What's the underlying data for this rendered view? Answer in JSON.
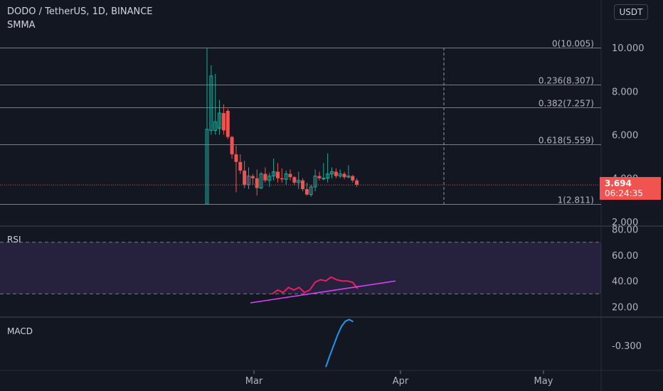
{
  "header": {
    "title": "DODO / TetherUS, 1D, BINANCE",
    "indicator": "SMMA",
    "currency": "USDT"
  },
  "price_badge": {
    "price": "3.694",
    "countdown": "06:24:35"
  },
  "panels": {
    "rsi_label": "RSI",
    "macd_label": "MACD"
  },
  "colors": {
    "background": "#131722",
    "up": "#26a69a",
    "down": "#ef5350",
    "rsi": "#e91e63",
    "trendline": "#e040fb",
    "macd": "#2196f3",
    "rsi_band": "#7e57c2"
  },
  "chart_data": {
    "type": "candlestick",
    "price_axis": {
      "ticks": [
        "10.000",
        "8.000",
        "6.000",
        "4.000",
        "2.000"
      ],
      "range": [
        1.8,
        10.4
      ]
    },
    "x_axis": {
      "ticks": [
        "Mar",
        "Apr",
        "May"
      ]
    },
    "fibonacci": [
      {
        "label": "0(10.005)",
        "value": 10.005
      },
      {
        "label": "0.236(8.307)",
        "value": 8.307
      },
      {
        "label": "0.382(7.257)",
        "value": 7.257
      },
      {
        "label": "0.618(5.559)",
        "value": 5.559
      },
      {
        "label": "1(2.811)",
        "value": 2.811
      }
    ],
    "candles": [
      {
        "o": 2.81,
        "h": 10.0,
        "l": 2.81,
        "c": 6.25
      },
      {
        "o": 6.2,
        "h": 9.2,
        "l": 6.0,
        "c": 8.7
      },
      {
        "o": 6.2,
        "h": 8.8,
        "l": 6.0,
        "c": 6.6
      },
      {
        "o": 6.3,
        "h": 7.6,
        "l": 6.0,
        "c": 7.0
      },
      {
        "o": 7.0,
        "h": 7.4,
        "l": 6.0,
        "c": 6.2
      },
      {
        "o": 7.1,
        "h": 7.2,
        "l": 5.8,
        "c": 5.9
      },
      {
        "o": 5.9,
        "h": 5.95,
        "l": 4.9,
        "c": 5.1
      },
      {
        "o": 5.1,
        "h": 5.5,
        "l": 3.35,
        "c": 4.75
      },
      {
        "o": 4.75,
        "h": 5.1,
        "l": 4.2,
        "c": 4.35
      },
      {
        "o": 4.35,
        "h": 4.8,
        "l": 3.55,
        "c": 3.7
      },
      {
        "o": 3.7,
        "h": 4.5,
        "l": 3.5,
        "c": 4.1
      },
      {
        "o": 4.1,
        "h": 4.2,
        "l": 3.7,
        "c": 4.0
      },
      {
        "o": 4.0,
        "h": 4.4,
        "l": 3.2,
        "c": 3.55
      },
      {
        "o": 3.55,
        "h": 4.3,
        "l": 3.5,
        "c": 4.2
      },
      {
        "o": 4.2,
        "h": 4.5,
        "l": 3.8,
        "c": 3.9
      },
      {
        "o": 3.9,
        "h": 4.25,
        "l": 3.6,
        "c": 4.1
      },
      {
        "o": 4.1,
        "h": 4.9,
        "l": 3.9,
        "c": 4.3
      },
      {
        "o": 4.3,
        "h": 4.7,
        "l": 3.8,
        "c": 4.0
      },
      {
        "o": 4.0,
        "h": 4.45,
        "l": 3.8,
        "c": 3.95
      },
      {
        "o": 3.95,
        "h": 4.35,
        "l": 3.7,
        "c": 4.2
      },
      {
        "o": 4.2,
        "h": 4.4,
        "l": 3.9,
        "c": 4.05
      },
      {
        "o": 4.05,
        "h": 4.1,
        "l": 3.7,
        "c": 3.8
      },
      {
        "o": 3.8,
        "h": 4.3,
        "l": 3.5,
        "c": 3.9
      },
      {
        "o": 3.9,
        "h": 4.0,
        "l": 3.4,
        "c": 3.5
      },
      {
        "o": 3.5,
        "h": 3.8,
        "l": 3.2,
        "c": 3.25
      },
      {
        "o": 3.25,
        "h": 3.7,
        "l": 3.15,
        "c": 3.6
      },
      {
        "o": 3.6,
        "h": 4.4,
        "l": 3.4,
        "c": 4.1
      },
      {
        "o": 4.1,
        "h": 4.3,
        "l": 3.9,
        "c": 4.0
      },
      {
        "o": 4.0,
        "h": 4.7,
        "l": 3.9,
        "c": 4.0
      },
      {
        "o": 4.0,
        "h": 5.15,
        "l": 3.8,
        "c": 4.2
      },
      {
        "o": 4.2,
        "h": 4.5,
        "l": 4.0,
        "c": 4.3
      },
      {
        "o": 4.3,
        "h": 4.45,
        "l": 4.0,
        "c": 4.1
      },
      {
        "o": 4.1,
        "h": 4.4,
        "l": 4.0,
        "c": 4.2
      },
      {
        "o": 4.2,
        "h": 4.3,
        "l": 3.95,
        "c": 4.05
      },
      {
        "o": 4.05,
        "h": 4.6,
        "l": 4.0,
        "c": 4.1
      },
      {
        "o": 4.1,
        "h": 4.15,
        "l": 3.8,
        "c": 3.9
      },
      {
        "o": 3.9,
        "h": 4.0,
        "l": 3.6,
        "c": 3.7
      }
    ],
    "rsi": {
      "axis_ticks": [
        "80.00",
        "60.00",
        "40.00",
        "20.00"
      ],
      "range": [
        12,
        82
      ],
      "band": [
        30,
        70
      ],
      "series": [
        30,
        33,
        31,
        35,
        33,
        35,
        31,
        33,
        39,
        41,
        40,
        43,
        41,
        40,
        40,
        39,
        34
      ],
      "trendline": [
        [
          0,
          23
        ],
        [
          1,
          40
        ]
      ]
    },
    "macd": {
      "axis_ticks": [
        "-0.300"
      ],
      "range": [
        -0.58,
        0.02
      ],
      "series": [
        -0.55,
        -0.42,
        -0.3,
        -0.18,
        -0.08,
        -0.02,
        0.0,
        -0.025
      ]
    }
  }
}
